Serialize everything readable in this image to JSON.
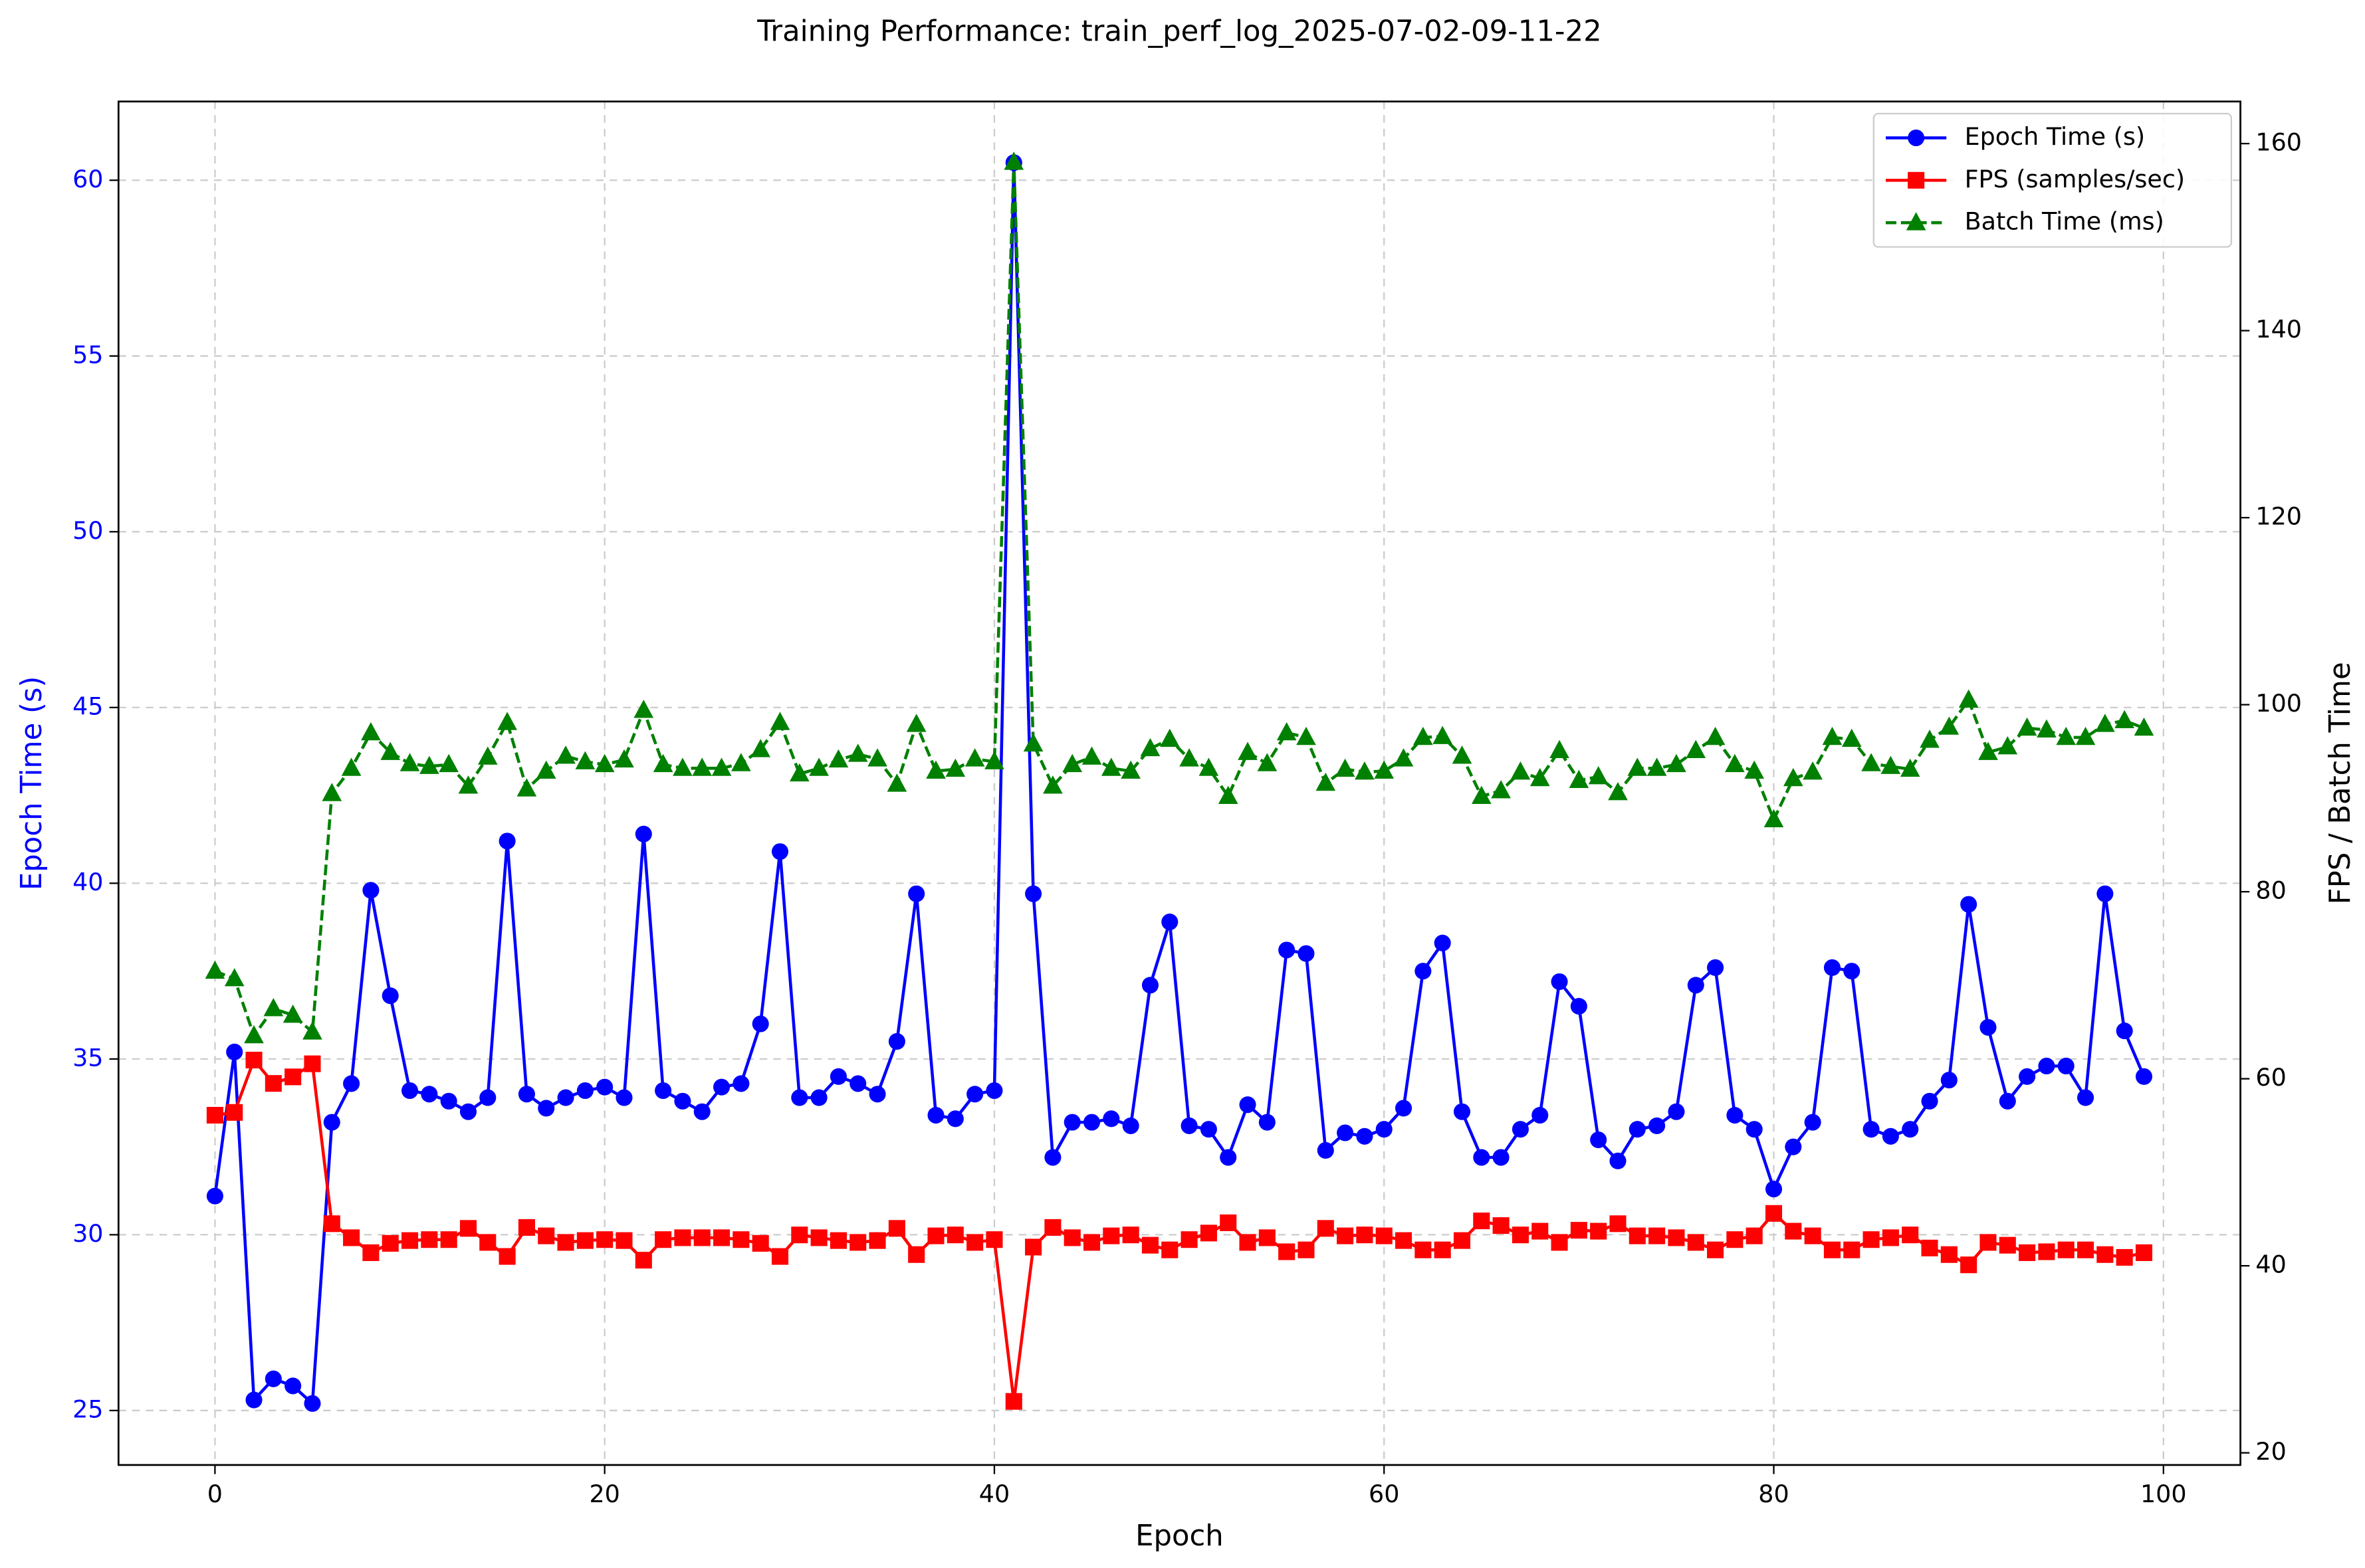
{
  "chart_data": {
    "type": "line",
    "title": "Training Performance: train_perf_log_2025-07-02-09-11-22",
    "xlabel": "Epoch",
    "ylabel": "Epoch Time (s)",
    "y2label": "FPS / Batch Time",
    "ylabel_color": "#0000ff",
    "x": [
      0,
      1,
      2,
      3,
      4,
      5,
      6,
      7,
      8,
      9,
      10,
      11,
      12,
      13,
      14,
      15,
      16,
      17,
      18,
      19,
      20,
      21,
      22,
      23,
      24,
      25,
      26,
      27,
      28,
      29,
      30,
      31,
      32,
      33,
      34,
      35,
      36,
      37,
      38,
      39,
      40,
      41,
      42,
      43,
      44,
      45,
      46,
      47,
      48,
      49,
      50,
      51,
      52,
      53,
      54,
      55,
      56,
      57,
      58,
      59,
      60,
      61,
      62,
      63,
      64,
      65,
      66,
      67,
      68,
      69,
      70,
      71,
      72,
      73,
      74,
      75,
      76,
      77,
      78,
      79,
      80,
      81,
      82,
      83,
      84,
      85,
      86,
      87,
      88,
      89,
      90,
      91,
      92,
      93,
      94,
      95,
      96,
      97,
      98,
      99
    ],
    "xlim": [
      -4.95,
      103.95
    ],
    "xticks": [
      0,
      20,
      40,
      60,
      80,
      100
    ],
    "ylim": [
      23.45,
      62.24
    ],
    "yticks": [
      25,
      30,
      35,
      40,
      45,
      50,
      55,
      60
    ],
    "y2lim": [
      18.7,
      164.5
    ],
    "y2ticks": [
      20,
      40,
      60,
      80,
      100,
      120,
      140,
      160
    ],
    "grid": true,
    "legend": "upper right",
    "series": [
      {
        "name": "Epoch Time (s)",
        "color": "#0000ff",
        "marker": "circle",
        "linestyle": "solid",
        "values": [
          31.1,
          35.2,
          25.3,
          25.9,
          25.7,
          25.2,
          33.2,
          34.3,
          39.8,
          36.8,
          34.1,
          34.0,
          33.8,
          33.5,
          33.9,
          41.2,
          34.0,
          33.6,
          33.9,
          34.1,
          34.2,
          33.9,
          41.4,
          34.1,
          33.8,
          33.5,
          34.2,
          34.3,
          36.0,
          40.9,
          33.9,
          33.9,
          34.5,
          34.3,
          34.0,
          35.5,
          39.7,
          33.4,
          33.3,
          34.0,
          34.1,
          60.5,
          39.7,
          32.2,
          33.2,
          33.2,
          33.3,
          33.1,
          37.1,
          38.9,
          33.1,
          33.0,
          32.2,
          33.7,
          33.2,
          38.1,
          38.0,
          32.4,
          32.9,
          32.8,
          33.0,
          33.6,
          37.5,
          38.3,
          33.5,
          32.2,
          32.2,
          33.0,
          33.4,
          37.2,
          36.5,
          32.7,
          32.1,
          33.0,
          33.1,
          33.5,
          37.1,
          37.6,
          33.4,
          33.0,
          31.3,
          32.5,
          33.2,
          37.6,
          37.5,
          33.0,
          32.8,
          33.0,
          33.8,
          34.4,
          39.4,
          35.9,
          33.8,
          34.5,
          34.8,
          34.8,
          33.9,
          39.7,
          35.8,
          34.5
        ]
      },
      {
        "name": "FPS (samples/sec)",
        "color": "#ff0000",
        "marker": "square",
        "linestyle": "solid",
        "axis": "y2",
        "values": [
          56.1,
          56.4,
          62,
          59.5,
          60.2,
          61.6,
          44.5,
          43,
          41.4,
          42.4,
          42.7,
          42.8,
          42.8,
          44,
          42.5,
          41,
          44.1,
          43.2,
          42.5,
          42.7,
          42.8,
          42.7,
          40.6,
          42.8,
          43,
          43,
          43,
          42.8,
          42.4,
          41,
          43.3,
          43,
          42.7,
          42.5,
          42.7,
          44,
          41.2,
          43.2,
          43.3,
          42.5,
          42.8,
          25.5,
          42,
          44.1,
          43,
          42.5,
          43.2,
          43.3,
          42.2,
          41.7,
          42.8,
          43.5,
          44.6,
          42.5,
          43,
          41.5,
          41.7,
          44,
          43.2,
          43.3,
          43.2,
          42.7,
          41.7,
          41.7,
          42.7,
          44.8,
          44.3,
          43.3,
          43.7,
          42.5,
          43.8,
          43.7,
          44.5,
          43.2,
          43.2,
          43,
          42.5,
          41.7,
          42.8,
          43.2,
          45.6,
          43.7,
          43.2,
          41.7,
          41.7,
          42.8,
          43,
          43.3,
          41.9,
          41.2,
          40.1,
          42.5,
          42.2,
          41.4,
          41.5,
          41.7,
          41.7,
          41.2,
          40.9,
          41.4
        ]
      },
      {
        "name": "Batch Time (ms)",
        "color": "#008000",
        "marker": "triangle",
        "linestyle": "dashed",
        "axis": "y2",
        "values": [
          71.5,
          70.7,
          64.6,
          67.5,
          66.8,
          65,
          90.5,
          93.2,
          97,
          94.9,
          93.7,
          93.4,
          93.6,
          91.3,
          94.4,
          98.1,
          91,
          92.9,
          94.5,
          93.9,
          93.6,
          94.1,
          99.4,
          93.6,
          93.2,
          93.2,
          93.2,
          93.7,
          95.2,
          98.1,
          92.6,
          93.2,
          94.1,
          94.7,
          94.2,
          91.5,
          97.9,
          92.9,
          93.1,
          94.2,
          93.9,
          158,
          95.8,
          91.3,
          93.6,
          94.4,
          93.2,
          92.9,
          95.3,
          96.3,
          94.2,
          93.2,
          90.2,
          94.9,
          93.7,
          97,
          96.5,
          91.6,
          93.1,
          92.8,
          92.9,
          94.2,
          96.5,
          96.6,
          94.5,
          90.2,
          90.8,
          92.8,
          92.1,
          95.1,
          91.9,
          92.3,
          90.6,
          93.2,
          93.2,
          93.6,
          95.1,
          96.5,
          93.6,
          92.9,
          87.7,
          92.1,
          92.8,
          96.5,
          96.3,
          93.7,
          93.4,
          93.1,
          96.2,
          97.6,
          100.5,
          94.9,
          95.5,
          97.5,
          97.3,
          96.5,
          96.5,
          97.9,
          98.3,
          97.5
        ]
      }
    ]
  }
}
